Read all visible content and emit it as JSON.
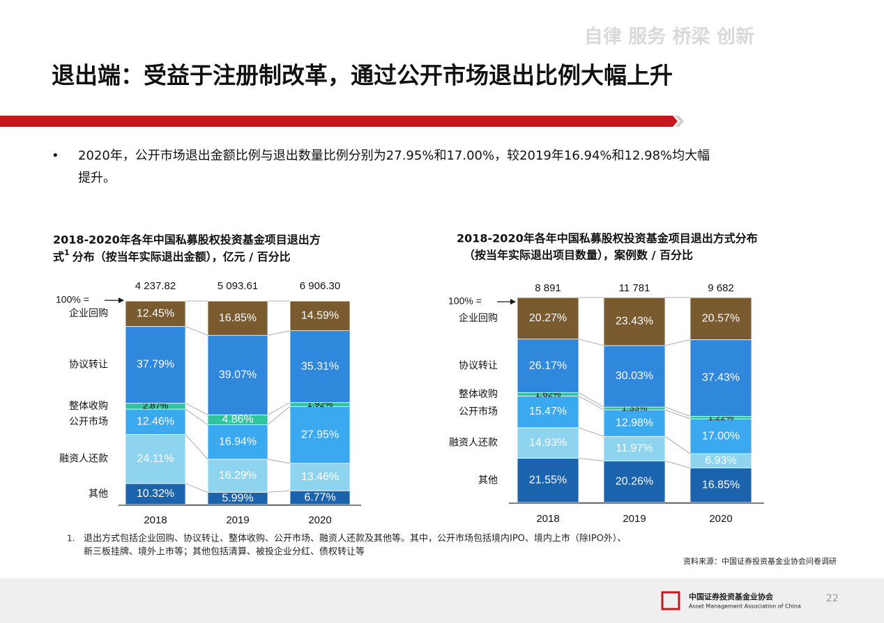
{
  "header": {
    "slogan": "自律  服务  桥梁  创新",
    "title": "退出端：受益于注册制改革，通过公开市场退出比例大幅上升"
  },
  "bullet": [
    "2020年，公开市场退出金额比例与退出数量比例分别为27.95%和17.00%，较2019年16.94%和12.98%均大幅",
    "提升。"
  ],
  "chart_data": [
    {
      "type": "bar",
      "stacked": true,
      "title": [
        "2018-2020年各年中国私募股权投资基金项目退出方",
        "式",
        "分布（按当年实际退出金额），亿元 / 百分比"
      ],
      "title_note": "1",
      "total_caption": "100% =",
      "categories": [
        "2018",
        "2019",
        "2020"
      ],
      "totals": {
        "values": [
          4237.82,
          5093.61,
          6906.3
        ],
        "value_labels": [
          "4 237.82",
          "5 093.61",
          "6 906.30"
        ]
      },
      "series": [
        {
          "name": "其他",
          "color": "#1b63ad",
          "values": [
            10.32,
            5.99,
            6.77
          ],
          "value_labels": [
            "10.32%",
            "5.99%",
            "6.77%"
          ]
        },
        {
          "name": "融资人还款",
          "color": "#8fd4ef",
          "values": [
            24.11,
            16.29,
            13.46
          ],
          "value_labels": [
            "24.11%",
            "16.29%",
            "13.46%"
          ]
        },
        {
          "name": "公开市场",
          "color": "#3aa9f0",
          "values": [
            12.46,
            16.94,
            27.95
          ],
          "value_labels": [
            "12.46%",
            "16.94%",
            "27.95%"
          ]
        },
        {
          "name": "整体收购",
          "color": "#2fc49e",
          "values": [
            2.87,
            4.86,
            1.92
          ],
          "value_labels": [
            "2.87%",
            "4.86%",
            "1.92%"
          ]
        },
        {
          "name": "协议转让",
          "color": "#2f88dc",
          "values": [
            37.79,
            39.07,
            35.31
          ],
          "value_labels": [
            "37.79%",
            "39.07%",
            "35.31%"
          ]
        },
        {
          "name": "企业回购",
          "color": "#7a5a2f",
          "values": [
            12.45,
            16.85,
            14.59
          ],
          "value_labels": [
            "12.45%",
            "16.85%",
            "14.59%"
          ]
        }
      ]
    },
    {
      "type": "bar",
      "stacked": true,
      "title": [
        "2018-2020年各年中国私募股权投资基金项目退出方式分布",
        "（按当年实际退出项目数量），案例数 / 百分比"
      ],
      "total_caption": "100% =",
      "categories": [
        "2018",
        "2019",
        "2020"
      ],
      "totals": {
        "values": [
          8891,
          11781,
          9682
        ],
        "value_labels": [
          "8 891",
          "11 781",
          "9 682"
        ]
      },
      "series": [
        {
          "name": "其他",
          "color": "#1b63ad",
          "values": [
            21.55,
            20.26,
            16.85
          ],
          "value_labels": [
            "21.55%",
            "20.26%",
            "16.85%"
          ]
        },
        {
          "name": "融资人还款",
          "color": "#8fd4ef",
          "values": [
            14.93,
            11.97,
            6.93
          ],
          "value_labels": [
            "14.93%",
            "11.97%",
            "6.93%"
          ]
        },
        {
          "name": "公开市场",
          "color": "#3aa9f0",
          "values": [
            15.47,
            12.98,
            17
          ],
          "value_labels": [
            "15.47%",
            "12.98%",
            "17.00%"
          ]
        },
        {
          "name": "整体收购",
          "color": "#2fc49e",
          "values": [
            1.62,
            1.33,
            1.22
          ],
          "value_labels": [
            "1.62%",
            "1.33%",
            "1.22%"
          ]
        },
        {
          "name": "协议转让",
          "color": "#2f88dc",
          "values": [
            26.17,
            30.03,
            37.43
          ],
          "value_labels": [
            "26.17%",
            "30.03%",
            "37.43%"
          ]
        },
        {
          "name": "企业回购",
          "color": "#7a5a2f",
          "values": [
            20.27,
            23.43,
            20.57
          ],
          "value_labels": [
            "20.27%",
            "23.43%",
            "20.57%"
          ]
        }
      ]
    }
  ],
  "footnote": {
    "mark": "1.",
    "lines": [
      "退出方式包括企业回购、协议转让、整体收购、公开市场、融资人还款及其他等。其中，公开市场包括境内IPO、境内上市（除IPO外）、",
      "新三板挂牌、境外上市等；其他包括清算、被投企业分红、债权转让等"
    ]
  },
  "source": "资料来源：中国证券投资基金业协会问卷调研",
  "footer": {
    "org_cn": "中国证券投资基金业协会",
    "org_en": "Asset Management Association of China",
    "page": "22"
  }
}
